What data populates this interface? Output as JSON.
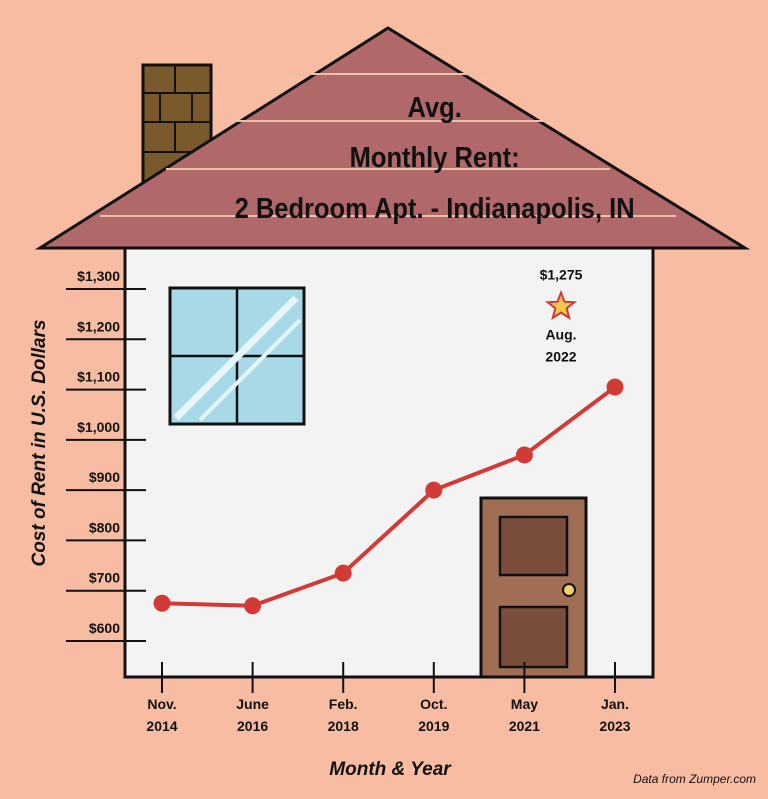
{
  "chart_data": {
    "type": "line",
    "title_lines": [
      "Avg.",
      "Monthly Rent:",
      "2 Bedroom Apt. - Indianapolis, IN"
    ],
    "xlabel": "Month & Year",
    "ylabel": "Cost of Rent in U.S. Dollars",
    "categories": [
      [
        "Nov.",
        "2014"
      ],
      [
        "June",
        "2016"
      ],
      [
        "Feb.",
        "2018"
      ],
      [
        "Oct.",
        "2019"
      ],
      [
        "May",
        "2021"
      ],
      [
        "Jan.",
        "2023"
      ]
    ],
    "values": [
      675,
      670,
      735,
      900,
      970,
      1105
    ],
    "y_ticks": [
      "$600",
      "$700",
      "$800",
      "$900",
      "$1,000",
      "$1,100",
      "$1,200",
      "$1,300"
    ],
    "ylim": [
      600,
      1300
    ],
    "line_color": "#d23a36",
    "annotation": {
      "value_label": "$1,275",
      "value": 1275,
      "date_lines": [
        "Aug.",
        "2022"
      ],
      "marker": "star-icon",
      "marker_color": "#f2c94c"
    },
    "grid": false
  },
  "source_note": "Data from Zumper.com",
  "colors": {
    "background": "#f8bca3",
    "roof": "#b0686a",
    "wall": "#f3f3f3",
    "chimney": "#7a5a2c",
    "window_glass": "#a8d9e6",
    "door": "#a06d55",
    "door_panel": "#7a4e3a",
    "knob": "#f2d06a"
  }
}
